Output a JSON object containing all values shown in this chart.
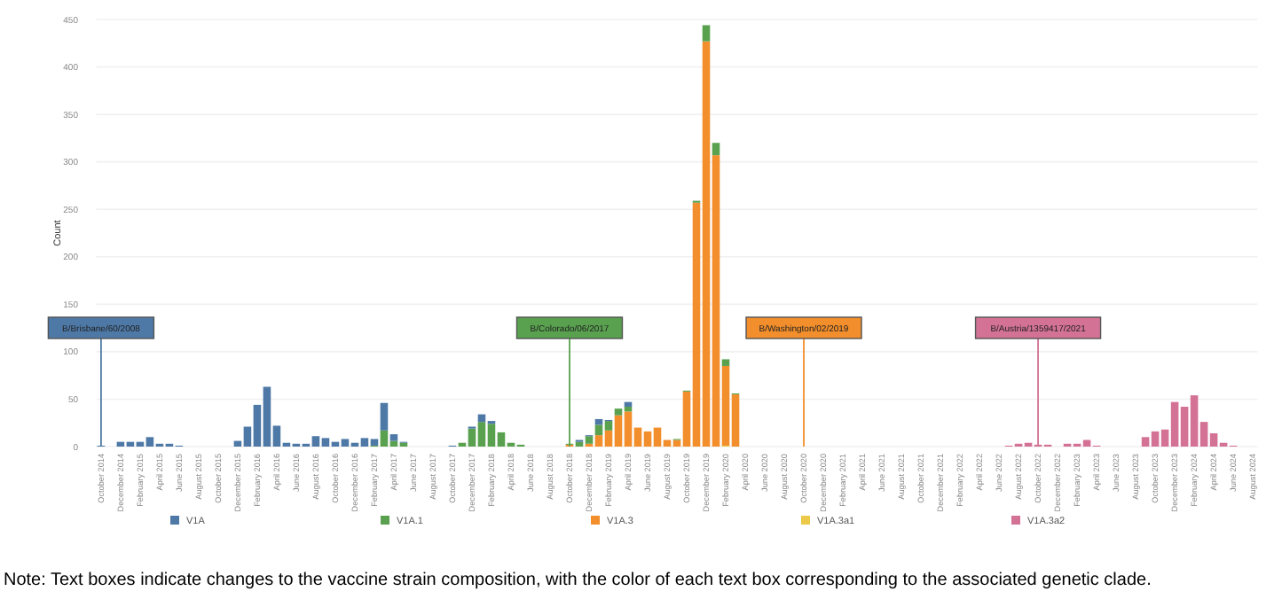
{
  "chart_data": {
    "type": "bar",
    "stacked": true,
    "ylabel": "Count",
    "ylim": [
      0,
      450
    ],
    "yticks": [
      0,
      50,
      100,
      150,
      200,
      250,
      300,
      350,
      400,
      450
    ],
    "grid": "y",
    "legend": "bottom",
    "categories": [
      "October 2014",
      null,
      "December 2014",
      null,
      "February 2015",
      null,
      "April 2015",
      null,
      "June 2015",
      null,
      "August 2015",
      null,
      "October 2015",
      null,
      "December 2015",
      null,
      "February 2016",
      null,
      "April 2016",
      null,
      "June 2016",
      null,
      "August 2016",
      null,
      "October 2016",
      null,
      "December 2016",
      null,
      "February 2017",
      null,
      "April 2017",
      null,
      "June 2017",
      null,
      "August 2017",
      null,
      "October 2017",
      null,
      "December 2017",
      null,
      "February 2018",
      null,
      "April 2018",
      null,
      "June 2018",
      null,
      "August 2018",
      null,
      "October 2018",
      null,
      "December 2018",
      null,
      "February 2019",
      null,
      "April 2019",
      null,
      "June 2019",
      null,
      "August 2019",
      null,
      "October 2019",
      null,
      "December 2019",
      null,
      "February 2020",
      null,
      "April 2020",
      null,
      "June 2020",
      null,
      "August 2020",
      null,
      "October 2020",
      null,
      "December 2020",
      null,
      "February 2021",
      null,
      "April 2021",
      null,
      "June 2021",
      null,
      "August 2021",
      null,
      "October 2021",
      null,
      "December 2021",
      null,
      "February 2022",
      null,
      "April 2022",
      null,
      "June 2022",
      null,
      "August 2022",
      null,
      "October 2022",
      null,
      "December 2022",
      null,
      "February 2023",
      null,
      "April 2023",
      null,
      "June 2023",
      null,
      "August 2023",
      null,
      "October 2023",
      null,
      "December 2023",
      null,
      "February 2024",
      null,
      "April 2024",
      null,
      "June 2024",
      null,
      "August 2024"
    ],
    "series": [
      {
        "name": "V1A.3a2",
        "color": "#d37295",
        "values": [
          0,
          0,
          0,
          0,
          0,
          0,
          0,
          0,
          0,
          0,
          0,
          0,
          0,
          0,
          0,
          0,
          0,
          0,
          0,
          0,
          0,
          0,
          0,
          0,
          0,
          0,
          0,
          0,
          0,
          0,
          0,
          0,
          0,
          0,
          0,
          0,
          0,
          0,
          0,
          0,
          0,
          0,
          0,
          0,
          0,
          0,
          0,
          0,
          0,
          0,
          0,
          0,
          0,
          0,
          0,
          0,
          0,
          0,
          0,
          0,
          0,
          0,
          0,
          0,
          0,
          0,
          0,
          0,
          0,
          0,
          0,
          0,
          0,
          0,
          0,
          0,
          0,
          0,
          0,
          0,
          0,
          0,
          0,
          0,
          0,
          0,
          0,
          0,
          0,
          0,
          0,
          0,
          0,
          1,
          3,
          4,
          2,
          2,
          0,
          3,
          3,
          7,
          1,
          0,
          0,
          0,
          0,
          10,
          16,
          18,
          47,
          42,
          54,
          26,
          14,
          4,
          1,
          0,
          0
        ]
      },
      {
        "name": "V1A.3a1",
        "color": "#edc948",
        "values": [
          0,
          0,
          0,
          0,
          0,
          0,
          0,
          0,
          0,
          0,
          0,
          0,
          0,
          0,
          0,
          0,
          0,
          0,
          0,
          0,
          0,
          0,
          0,
          0,
          0,
          0,
          0,
          0,
          0,
          0,
          0,
          0,
          0,
          0,
          0,
          0,
          0,
          0,
          0,
          0,
          0,
          0,
          0,
          0,
          0,
          0,
          0,
          0,
          0,
          0,
          0,
          0,
          0,
          0,
          0,
          0,
          0,
          0,
          0,
          0,
          0,
          0,
          0,
          0,
          1,
          0,
          0,
          0,
          0,
          0,
          0,
          0,
          0,
          0,
          0,
          0,
          0,
          0,
          0,
          0,
          0,
          0,
          0,
          0,
          0,
          0,
          0,
          0,
          0,
          0,
          0,
          0,
          0,
          0,
          0,
          0,
          0,
          0,
          0,
          0,
          0,
          0,
          0,
          0,
          0,
          0,
          0,
          0,
          0,
          0,
          0,
          0,
          0,
          0,
          0,
          0,
          0,
          0,
          0
        ]
      },
      {
        "name": "V1A.3",
        "color": "#f28e2b",
        "values": [
          0,
          0,
          0,
          0,
          0,
          0,
          0,
          0,
          0,
          0,
          0,
          0,
          0,
          0,
          0,
          0,
          0,
          0,
          0,
          0,
          0,
          0,
          0,
          0,
          0,
          0,
          0,
          0,
          0,
          0,
          0,
          0,
          0,
          0,
          0,
          0,
          0,
          0,
          0,
          0,
          0,
          0,
          0,
          0,
          0,
          0,
          0,
          0,
          2,
          0,
          3,
          12,
          17,
          33,
          37,
          20,
          16,
          20,
          7,
          7,
          58,
          257,
          427,
          307,
          84,
          55,
          0,
          0,
          0,
          0,
          0,
          0,
          0,
          0,
          0,
          0,
          0,
          0,
          0,
          0,
          0,
          0,
          0,
          0,
          0,
          0,
          0,
          0,
          0,
          0,
          0,
          0,
          0,
          0,
          0,
          0,
          0,
          0,
          0,
          0,
          0,
          0,
          0,
          0,
          0,
          0,
          0,
          0,
          0,
          0,
          0,
          0,
          0,
          0,
          0,
          0,
          0,
          0,
          0
        ]
      },
      {
        "name": "V1A.1",
        "color": "#59a14f",
        "values": [
          0,
          0,
          0,
          0,
          0,
          0,
          0,
          0,
          0,
          0,
          0,
          0,
          0,
          0,
          0,
          0,
          0,
          0,
          0,
          0,
          0,
          0,
          0,
          0,
          0,
          0,
          0,
          0,
          1,
          17,
          6,
          4,
          0,
          0,
          0,
          0,
          0,
          4,
          19,
          26,
          24,
          15,
          4,
          2,
          0,
          0,
          0,
          0,
          1,
          5,
          8,
          11,
          10,
          7,
          5,
          0,
          0,
          0,
          0,
          1,
          1,
          2,
          17,
          13,
          7,
          1,
          0,
          0,
          0,
          0,
          0,
          0,
          0,
          0,
          0,
          0,
          0,
          0,
          0,
          0,
          0,
          0,
          0,
          0,
          0,
          0,
          0,
          0,
          0,
          0,
          0,
          0,
          0,
          0,
          0,
          0,
          0,
          0,
          0,
          0,
          0,
          0,
          0,
          0,
          0,
          0,
          0,
          0,
          0,
          0,
          0,
          0,
          0,
          0,
          0,
          0,
          0,
          0,
          0
        ]
      },
      {
        "name": "V1A",
        "color": "#4e79a7",
        "values": [
          1,
          0,
          5,
          5,
          5,
          10,
          3,
          3,
          1,
          0,
          0,
          0,
          0,
          0,
          6,
          21,
          44,
          63,
          22,
          4,
          3,
          3,
          11,
          9,
          5,
          8,
          4,
          9,
          7,
          29,
          7,
          1,
          0,
          0,
          0,
          0,
          1,
          0,
          2,
          8,
          3,
          0,
          0,
          0,
          0,
          0,
          0,
          0,
          0,
          2,
          1,
          6,
          1,
          0,
          5,
          0,
          0,
          0,
          0,
          0,
          0,
          0,
          0,
          0,
          0,
          0,
          0,
          0,
          0,
          0,
          0,
          0,
          0,
          0,
          0,
          0,
          0,
          0,
          0,
          0,
          0,
          0,
          0,
          0,
          0,
          0,
          0,
          0,
          0,
          0,
          0,
          0,
          0,
          0,
          0,
          0,
          0,
          0,
          0,
          0,
          0,
          0,
          0,
          0,
          0,
          0,
          0,
          0,
          0,
          0,
          0,
          0,
          0,
          0,
          0,
          0,
          0,
          0,
          0
        ]
      }
    ],
    "ref_lines": [
      {
        "axis": "x",
        "value": "October 2014",
        "label": "B/Brisbane/60/2008",
        "color": "#4e79a7"
      },
      {
        "axis": "x",
        "value": "October 2018",
        "label": "B/Colorado/06/2017",
        "color": "#59a14f"
      },
      {
        "axis": "x",
        "value": "October 2020",
        "label": "B/Washington/02/2019",
        "color": "#f28e2b"
      },
      {
        "axis": "x",
        "value": "October 2022",
        "label": "B/Austria/1359417/2021",
        "color": "#d37295"
      }
    ],
    "annotations": [
      "Note: Text boxes indicate changes to the vaccine strain composition, with the color of each text box corresponding to the associated genetic clade."
    ]
  }
}
